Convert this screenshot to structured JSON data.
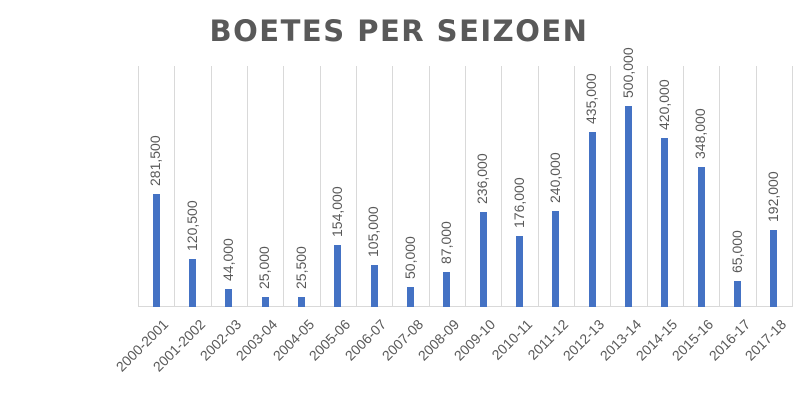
{
  "chart_data": {
    "type": "bar",
    "title": "BOETES PER SEIZOEN",
    "xlabel": "",
    "ylabel": "",
    "categories": [
      "2000-2001",
      "2001-2002",
      "2002-03",
      "2003-04",
      "2004-05",
      "2005-06",
      "2006-07",
      "2007-08",
      "2008-09",
      "2009-10",
      "2010-11",
      "2011-12",
      "2012-13",
      "2013-14",
      "2014-15",
      "2015-16",
      "2016-17",
      "2017-18"
    ],
    "values": [
      281500,
      120500,
      44000,
      25000,
      25500,
      154000,
      105000,
      50000,
      87000,
      236000,
      176000,
      240000,
      435000,
      500000,
      420000,
      348000,
      65000,
      192000
    ],
    "data_labels": [
      "281,500",
      "120,500",
      "44,000",
      "25,000",
      "25,500",
      "154,000",
      "105,000",
      "50,000",
      "87,000",
      "236,000",
      "176,000",
      "240,000",
      "435,000",
      "500,000",
      "420,000",
      "348,000",
      "65,000",
      "192,000"
    ],
    "ylim": [
      0,
      600000
    ],
    "grid": "vertical",
    "legend": "none",
    "bar_color": "#4472c4"
  }
}
